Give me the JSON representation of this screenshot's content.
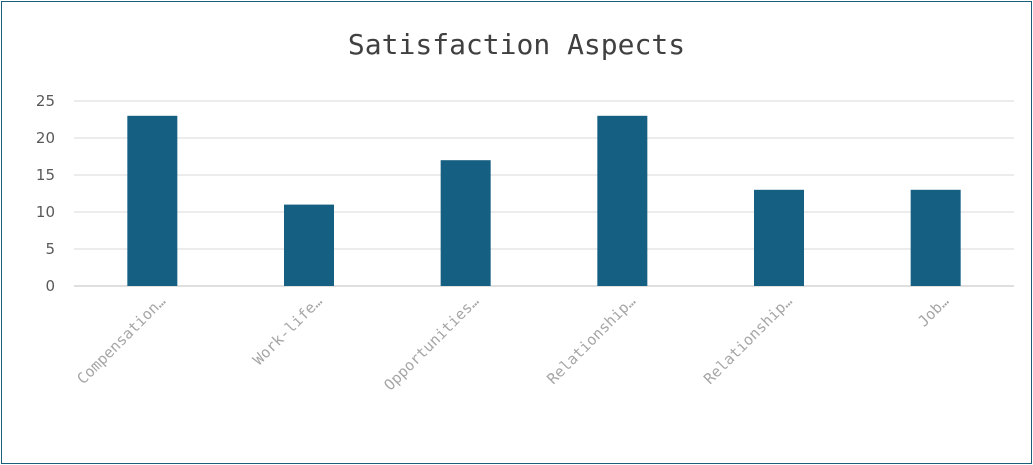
{
  "chart_data": {
    "type": "bar",
    "title": "Satisfaction Aspects",
    "xlabel": "",
    "ylabel": "",
    "ylim": [
      0,
      25
    ],
    "yticks": [
      0,
      5,
      10,
      15,
      20,
      25
    ],
    "grid": true,
    "legend": "none",
    "categories": [
      "Compensation…",
      "Work-life…",
      "Opportunities…",
      "Relationship…",
      "Relationship…",
      "Job…"
    ],
    "values": [
      23,
      11,
      17,
      23,
      13,
      13
    ],
    "bar_color": "#145f82"
  }
}
